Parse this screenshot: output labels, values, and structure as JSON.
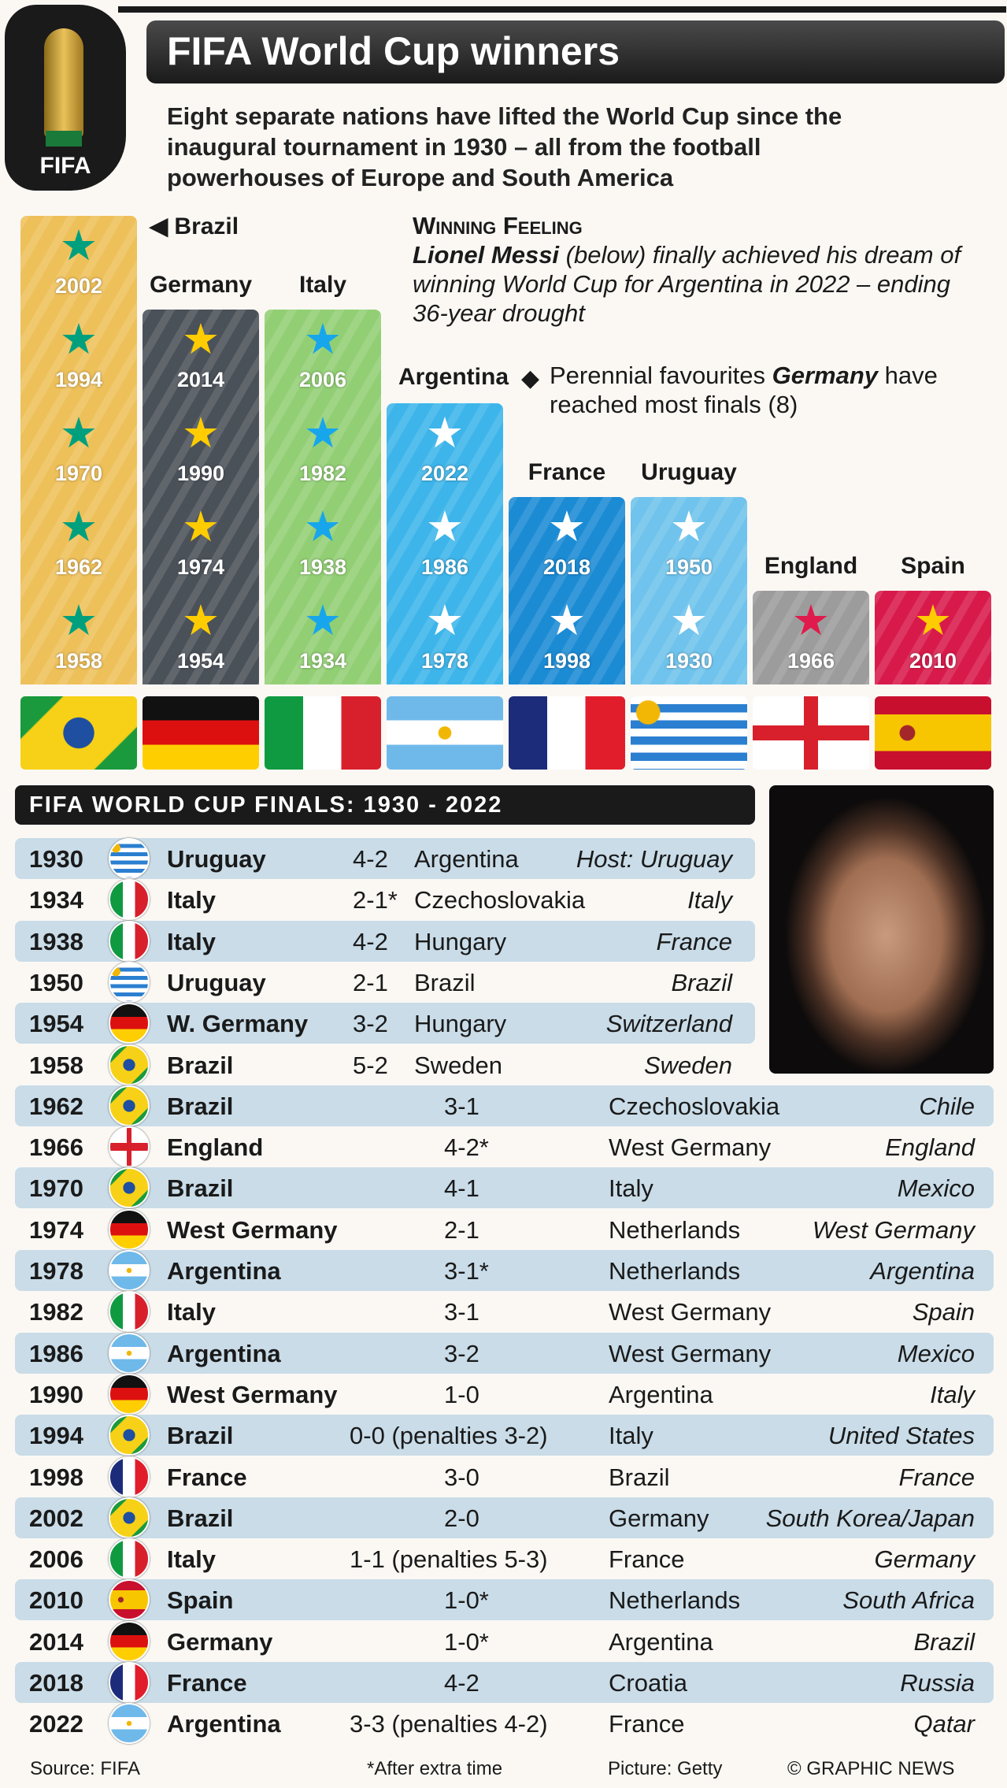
{
  "logo": {
    "text": "FIFA"
  },
  "title": "FIFA World Cup winners",
  "subtitle": "Eight separate nations have lifted the World Cup since the inaugural tournament in 1930 – all from the football powerhouses of Europe and South America",
  "winning_feeling": {
    "heading": "Winning Feeling",
    "name": "Lionel Messi",
    "text1": " (below) finally achieved his dream of winning World Cup for Argentina in 2022 – ending 36-year drought"
  },
  "favourites": {
    "text1": "Perennial favourites ",
    "name": "Germany",
    "text2": " have reached most finals (8)"
  },
  "nations": [
    {
      "name": "◀ Brazil",
      "years": [
        "2002",
        "1994",
        "1970",
        "1962",
        "1958"
      ],
      "bg": "#eec05a",
      "star": "#00a07e"
    },
    {
      "name": "Germany",
      "years": [
        "2014",
        "1990",
        "1974",
        "1954"
      ],
      "bg": "#4b5159",
      "star": "#ffcc00"
    },
    {
      "name": "Italy",
      "years": [
        "2006",
        "1982",
        "1938",
        "1934"
      ],
      "bg": "#92cf74",
      "star": "#17a6ec"
    },
    {
      "name": "Argentina",
      "years": [
        "2022",
        "1986",
        "1978"
      ],
      "bg": "#3db5ea",
      "star": "#ffffff"
    },
    {
      "name": "France",
      "years": [
        "2018",
        "1998"
      ],
      "bg": "#1b8bd4",
      "star": "#ffffff"
    },
    {
      "name": "Uruguay",
      "years": [
        "1950",
        "1930"
      ],
      "bg": "#6fc3ec",
      "star": "#ffffff"
    },
    {
      "name": "England",
      "years": [
        "1966"
      ],
      "bg": "#9c9c9c",
      "star": "#e01a4c"
    },
    {
      "name": "Spain",
      "years": [
        "2010"
      ],
      "bg": "#d81a4b",
      "star": "#ffcc00"
    }
  ],
  "finals_heading": "FIFA WORLD CUP FINALS: 1930 - 2022",
  "finals": [
    {
      "year": "1930",
      "flag": "uruguay",
      "winner": "Uruguay",
      "score": "4-2",
      "opponent": "Argentina",
      "host": "Host: Uruguay"
    },
    {
      "year": "1934",
      "flag": "italy",
      "winner": "Italy",
      "score": "2-1*",
      "opponent": "Czechoslovakia",
      "host": "Italy"
    },
    {
      "year": "1938",
      "flag": "italy",
      "winner": "Italy",
      "score": "4-2",
      "opponent": "Hungary",
      "host": "France"
    },
    {
      "year": "1950",
      "flag": "uruguay",
      "winner": "Uruguay",
      "score": "2-1",
      "opponent": "Brazil",
      "host": "Brazil"
    },
    {
      "year": "1954",
      "flag": "germany",
      "winner": "W. Germany",
      "score": "3-2",
      "opponent": "Hungary",
      "host": "Switzerland"
    },
    {
      "year": "1958",
      "flag": "brazil",
      "winner": "Brazil",
      "score": "5-2",
      "opponent": "Sweden",
      "host": "Sweden"
    },
    {
      "year": "1962",
      "flag": "brazil",
      "winner": "Brazil",
      "score": "3-1",
      "opponent": "Czechoslovakia",
      "host": "Chile"
    },
    {
      "year": "1966",
      "flag": "england",
      "winner": "England",
      "score": "4-2*",
      "opponent": "West Germany",
      "host": "England"
    },
    {
      "year": "1970",
      "flag": "brazil",
      "winner": "Brazil",
      "score": "4-1",
      "opponent": "Italy",
      "host": "Mexico"
    },
    {
      "year": "1974",
      "flag": "germany",
      "winner": "West Germany",
      "score": "2-1",
      "opponent": "Netherlands",
      "host": "West Germany"
    },
    {
      "year": "1978",
      "flag": "argentina",
      "winner": "Argentina",
      "score": "3-1*",
      "opponent": "Netherlands",
      "host": "Argentina"
    },
    {
      "year": "1982",
      "flag": "italy",
      "winner": "Italy",
      "score": "3-1",
      "opponent": "West Germany",
      "host": "Spain"
    },
    {
      "year": "1986",
      "flag": "argentina",
      "winner": "Argentina",
      "score": "3-2",
      "opponent": "West Germany",
      "host": "Mexico"
    },
    {
      "year": "1990",
      "flag": "germany",
      "winner": "West Germany",
      "score": "1-0",
      "opponent": "Argentina",
      "host": "Italy"
    },
    {
      "year": "1994",
      "flag": "brazil",
      "winner": "Brazil",
      "score": "0-0 (penalties 3-2)",
      "opponent": "Italy",
      "host": "United States"
    },
    {
      "year": "1998",
      "flag": "france",
      "winner": "France",
      "score": "3-0",
      "opponent": "Brazil",
      "host": "France"
    },
    {
      "year": "2002",
      "flag": "brazil",
      "winner": "Brazil",
      "score": "2-0",
      "opponent": "Germany",
      "host": "South Korea/Japan"
    },
    {
      "year": "2006",
      "flag": "italy",
      "winner": "Italy",
      "score": "1-1 (penalties 5-3)",
      "opponent": "France",
      "host": "Germany"
    },
    {
      "year": "2010",
      "flag": "spain",
      "winner": "Spain",
      "score": "1-0*",
      "opponent": "Netherlands",
      "host": "South Africa"
    },
    {
      "year": "2014",
      "flag": "germany",
      "winner": "Germany",
      "score": "1-0*",
      "opponent": "Argentina",
      "host": "Brazil"
    },
    {
      "year": "2018",
      "flag": "france",
      "winner": "France",
      "score": "4-2",
      "opponent": "Croatia",
      "host": "Russia"
    },
    {
      "year": "2022",
      "flag": "argentina",
      "winner": "Argentina",
      "score": "3-3 (penalties 4-2)",
      "opponent": "France",
      "host": "Qatar"
    }
  ],
  "footer": {
    "source": "Source: FIFA",
    "note": "*After extra time",
    "picture": "Picture: Getty",
    "credit": "© GRAPHIC NEWS"
  }
}
